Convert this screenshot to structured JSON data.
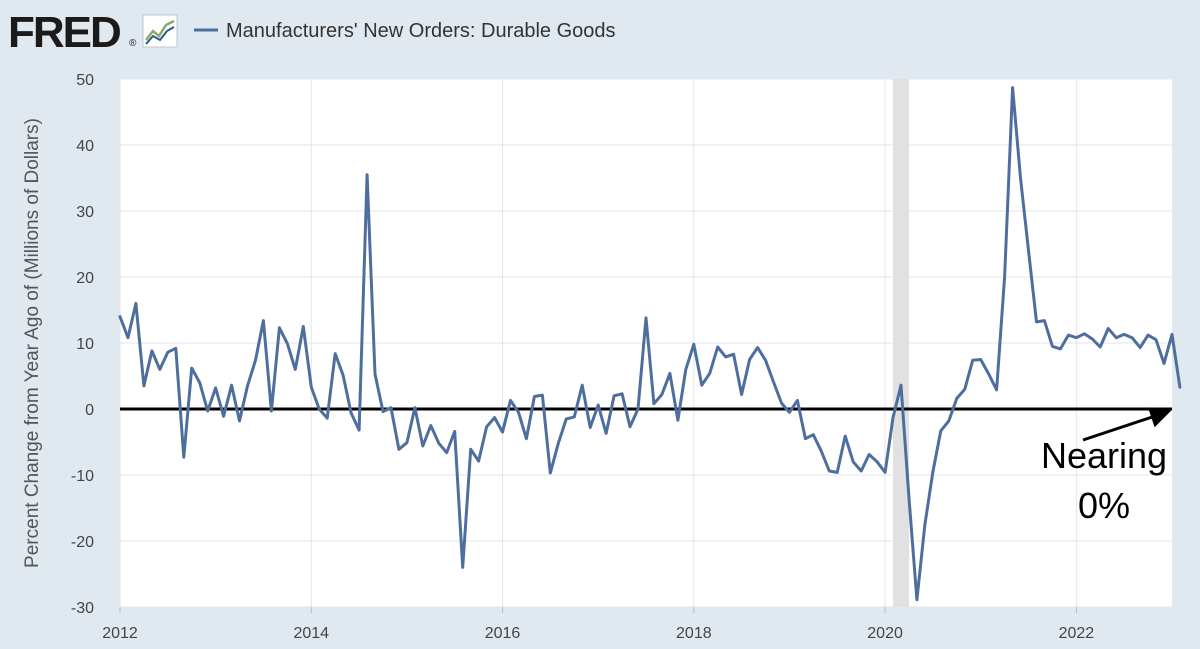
{
  "header": {
    "logo_text": "FRED",
    "logo_mark": "®",
    "legend_label": "Manufacturers' New Orders: Durable Goods"
  },
  "colors": {
    "background": "#e1e9f0",
    "plot_bg": "#ffffff",
    "series": "#4e6f9e",
    "recession": "#e1e1e1",
    "zero_line": "#000000",
    "grid": "#e1e6ec"
  },
  "chart_data": {
    "type": "line",
    "title": "Manufacturers' New Orders: Durable Goods",
    "xlabel": "",
    "ylabel": "Percent Change from Year Ago of (Millions of Dollars)",
    "xlim": [
      2012.0,
      2023.0
    ],
    "ylim": [
      -30,
      50
    ],
    "x_ticks": [
      2012,
      2014,
      2016,
      2018,
      2020,
      2022
    ],
    "x_tick_labels": [
      "2012",
      "2014",
      "2016",
      "2018",
      "2020",
      "2022"
    ],
    "y_ticks": [
      -30,
      -20,
      -10,
      0,
      10,
      20,
      30,
      40,
      50
    ],
    "y_tick_labels": [
      "-30",
      "-20",
      "-10",
      "0",
      "10",
      "20",
      "30",
      "40",
      "50"
    ],
    "grid": true,
    "recession_shading": [
      {
        "start": 2020.083,
        "end": 2020.25
      }
    ],
    "series": [
      {
        "name": "Manufacturers' New Orders: Durable Goods",
        "start": 2012.0,
        "step": 0.08333,
        "values": [
          14,
          10.8,
          16,
          3.5,
          8.8,
          6,
          8.6,
          9.2,
          -7.3,
          6.2,
          4,
          -0.3,
          3.2,
          -1.1,
          3.6,
          -1.8,
          3.5,
          7.4,
          13.4,
          -0.3,
          12.3,
          9.9,
          6,
          12.5,
          3.3,
          0,
          -1.4,
          8.4,
          5.1,
          -0.6,
          -3.2,
          35.5,
          5.3,
          -0.4,
          0.2,
          -6.1,
          -5.1,
          0.2,
          -5.6,
          -2.5,
          -5.2,
          -6.6,
          -3.4,
          -24,
          -6.1,
          -7.9,
          -2.7,
          -1.3,
          -3.5,
          1.3,
          -0.5,
          -4.5,
          1.9,
          2.1,
          -9.7,
          -5.2,
          -1.5,
          -1.2,
          3.6,
          -2.8,
          0.6,
          -3.7,
          2,
          2.3,
          -2.7,
          0,
          13.8,
          0.8,
          2.2,
          5.4,
          -1.7,
          6,
          9.8,
          3.6,
          5.4,
          9.4,
          7.9,
          8.3,
          2.2,
          7.5,
          9.3,
          7.4,
          4.1,
          0.9,
          -0.5,
          1.3,
          -4.5,
          -3.9,
          -6.4,
          -9.4,
          -9.6,
          -4.1,
          -8,
          -9.4,
          -6.9,
          -8,
          -9.6,
          -1.3,
          3.6,
          -13.5,
          -28.9,
          -17.5,
          -9.5,
          -3.3,
          -1.8,
          1.6,
          3,
          7.4,
          7.5,
          5.3,
          2.9,
          20,
          48.7,
          35,
          24,
          13.2,
          13.4,
          9.5,
          9.1,
          11.2,
          10.8,
          11.4,
          10.6,
          9.4,
          12.2,
          10.8,
          11.3,
          10.8,
          9.3,
          11.2,
          10.5,
          6.9,
          11.3,
          3.3
        ]
      }
    ],
    "reference_lines": [
      {
        "axis": "y",
        "value": 0,
        "color": "#000000"
      }
    ],
    "annotations": [
      {
        "text_lines": [
          "Nearing",
          "0%"
        ],
        "arrow_to": {
          "x": 2022.95,
          "y": 0
        }
      }
    ]
  }
}
